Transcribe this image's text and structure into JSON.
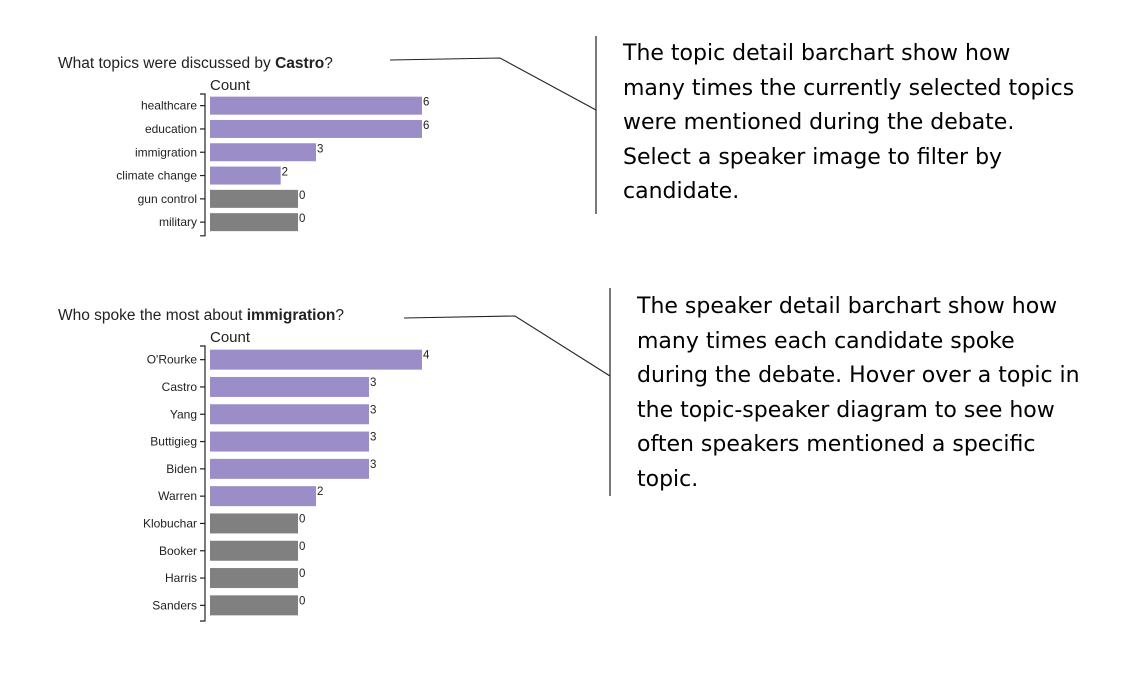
{
  "colors": {
    "highlight": "#9b8dc7",
    "inactive": "#808080",
    "text": "#222222"
  },
  "chart_data": [
    {
      "type": "bar",
      "orientation": "horizontal",
      "title_prefix": "What topics were discussed by ",
      "title_emphasis": "Castro",
      "title_suffix": "?",
      "xlabel": "Count",
      "ylabel": "",
      "categories": [
        "healthcare",
        "education",
        "immigration",
        "climate change",
        "gun control",
        "military"
      ],
      "values": [
        6,
        6,
        3,
        2,
        0,
        0
      ],
      "xlim": [
        0,
        6
      ],
      "grid": false,
      "bar_colors": [
        "highlight",
        "highlight",
        "highlight",
        "highlight",
        "inactive",
        "inactive"
      ]
    },
    {
      "type": "bar",
      "orientation": "horizontal",
      "title_prefix": "Who spoke the most about ",
      "title_emphasis": "immigration",
      "title_suffix": "?",
      "xlabel": "Count",
      "ylabel": "",
      "categories": [
        "O'Rourke",
        "Castro",
        "Yang",
        "Buttigieg",
        "Biden",
        "Warren",
        "Klobuchar",
        "Booker",
        "Harris",
        "Sanders"
      ],
      "values": [
        4,
        3,
        3,
        3,
        3,
        2,
        0,
        0,
        0,
        0
      ],
      "xlim": [
        0,
        4
      ],
      "grid": false,
      "bar_colors": [
        "highlight",
        "highlight",
        "highlight",
        "highlight",
        "highlight",
        "highlight",
        "inactive",
        "inactive",
        "inactive",
        "inactive"
      ]
    }
  ],
  "annotations": [
    {
      "lines": [
        "The topic detail barchart show how",
        "many times the currently selected topics",
        "were mentioned during the debate.",
        "Select a speaker image to filter by",
        "candidate."
      ]
    },
    {
      "lines": [
        "The speaker detail barchart show how",
        "many times each candidate spoke",
        "during the debate. Hover over a topic in",
        "the topic-speaker diagram to see how",
        "often speakers mentioned a specific",
        "topic."
      ]
    }
  ]
}
